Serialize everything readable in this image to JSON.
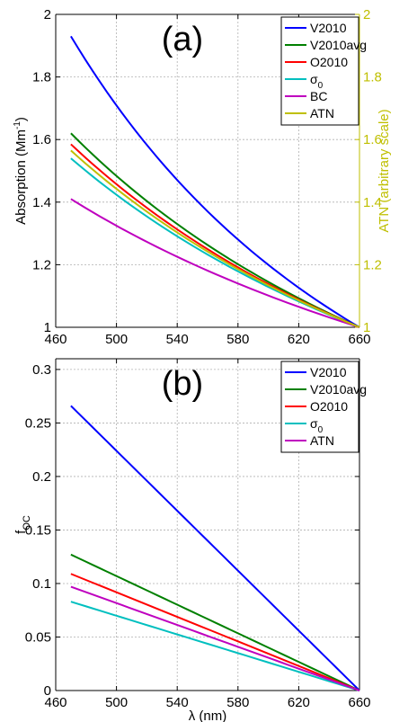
{
  "colors": {
    "blue": "#0000ff",
    "green": "#008000",
    "red": "#ff0000",
    "cyan": "#00bfbf",
    "magenta": "#bf00bf",
    "olive": "#bfbf00"
  },
  "chart_data": [
    {
      "type": "line",
      "panel_label": "(a)",
      "xlabel": "",
      "ylabel": "Absorption (Mm",
      "ylabel_sup": "-1",
      "ylabel_end": ")",
      "y2label": "ATN (arbitrary scale)",
      "xlim": [
        460,
        660
      ],
      "ylim": [
        1,
        2
      ],
      "y2lim": [
        1,
        2
      ],
      "xticks": [
        "460",
        "500",
        "540",
        "580",
        "620",
        "660"
      ],
      "yticks": [
        "1",
        "1.2",
        "1.4",
        "1.6",
        "1.8",
        "2"
      ],
      "y2ticks": [
        "1",
        "1.2",
        "1.4",
        "1.6",
        "1.8",
        "2"
      ],
      "grid": true,
      "legend_position": "top-right",
      "x": [
        470,
        660
      ],
      "series": [
        {
          "name": "V2010",
          "color": "blue",
          "kind": "power",
          "values": [
            1.93,
            1.0
          ],
          "exponent": 2.05
        },
        {
          "name": "V2010avg",
          "color": "green",
          "kind": "power",
          "values": [
            1.62,
            1.0
          ],
          "exponent": 1.42
        },
        {
          "name": "O2010",
          "color": "red",
          "kind": "power",
          "values": [
            1.585,
            1.0
          ],
          "exponent": 1.36
        },
        {
          "name": "σ",
          "sub": "0",
          "color": "cyan",
          "kind": "power",
          "values": [
            1.54,
            1.0
          ],
          "exponent": 1.27
        },
        {
          "name": "BC",
          "color": "magenta",
          "kind": "power",
          "values": [
            1.41,
            1.0
          ],
          "exponent": 1.0
        },
        {
          "name": "ATN",
          "color": "olive",
          "kind": "power",
          "values": [
            1.565,
            1.0
          ],
          "exponent": 1.32
        }
      ]
    },
    {
      "type": "line",
      "panel_label": "(b)",
      "xlabel": "λ (nm)",
      "ylabel": "f",
      "ylabel_sub": "OC",
      "xlim": [
        460,
        660
      ],
      "ylim": [
        0,
        0.31
      ],
      "xticks": [
        "460",
        "500",
        "540",
        "580",
        "620",
        "660"
      ],
      "yticks": [
        "0",
        "0.05",
        "0.1",
        "0.15",
        "0.2",
        "0.25",
        "0.3"
      ],
      "grid": true,
      "legend_position": "top-right",
      "x": [
        470,
        660
      ],
      "series": [
        {
          "name": "V2010",
          "color": "blue",
          "kind": "linear",
          "values": [
            0.266,
            0.0
          ]
        },
        {
          "name": "V2010avg",
          "color": "green",
          "kind": "linear",
          "values": [
            0.127,
            0.0
          ]
        },
        {
          "name": "O2010",
          "color": "red",
          "kind": "linear",
          "values": [
            0.109,
            0.0
          ]
        },
        {
          "name": "σ",
          "sub": "0",
          "color": "cyan",
          "kind": "linear",
          "values": [
            0.083,
            0.0
          ]
        },
        {
          "name": "ATN",
          "color": "magenta",
          "kind": "linear",
          "values": [
            0.097,
            0.0
          ]
        }
      ]
    }
  ]
}
